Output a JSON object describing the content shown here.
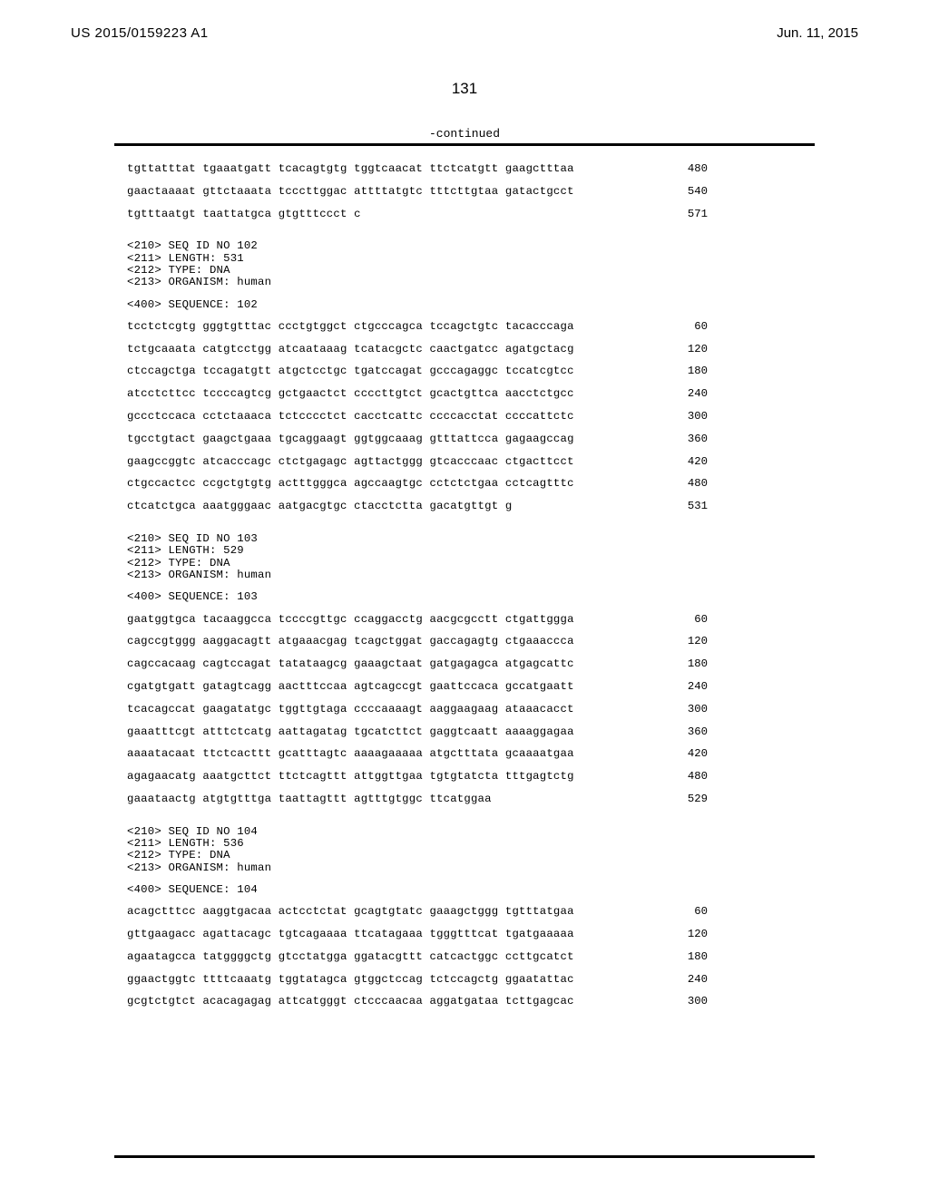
{
  "header": {
    "pub_number": "US 2015/0159223 A1",
    "pub_date": "Jun. 11, 2015"
  },
  "page_number": "131",
  "continued_label": "-continued",
  "blocks": [
    {
      "type": "seq_rows",
      "rows": [
        {
          "seq": "tgttatttat tgaaatgatt tcacagtgtg tggtcaacat ttctcatgtt gaagctttaa",
          "num": "480"
        },
        {
          "seq": "gaactaaaat gttctaaata tcccttggac attttatgtc tttcttgtaa gatactgcct",
          "num": "540"
        },
        {
          "seq": "tgtttaatgt taattatgca gtgtttccct c",
          "num": "571"
        }
      ]
    },
    {
      "type": "meta",
      "lines": [
        "<210> SEQ ID NO 102",
        "<211> LENGTH: 531",
        "<212> TYPE: DNA",
        "<213> ORGANISM: human"
      ]
    },
    {
      "type": "meta",
      "lines": [
        "<400> SEQUENCE: 102"
      ]
    },
    {
      "type": "seq_rows",
      "rows": [
        {
          "seq": "tcctctcgtg gggtgtttac ccctgtggct ctgcccagca tccagctgtc tacacccaga",
          "num": "60"
        },
        {
          "seq": "tctgcaaata catgtcctgg atcaataaag tcatacgctc caactgatcc agatgctacg",
          "num": "120"
        },
        {
          "seq": "ctccagctga tccagatgtt atgctcctgc tgatccagat gcccagaggc tccatcgtcc",
          "num": "180"
        },
        {
          "seq": "atcctcttcc tccccagtcg gctgaactct ccccttgtct gcactgttca aacctctgcc",
          "num": "240"
        },
        {
          "seq": "gccctccaca cctctaaaca tctcccctct cacctcattc ccccacctat ccccattctc",
          "num": "300"
        },
        {
          "seq": "tgcctgtact gaagctgaaa tgcaggaagt ggtggcaaag gtttattcca gagaagccag",
          "num": "360"
        },
        {
          "seq": "gaagccggtc atcacccagc ctctgagagc agttactggg gtcacccaac ctgacttcct",
          "num": "420"
        },
        {
          "seq": "ctgccactcc ccgctgtgtg actttgggca agccaagtgc cctctctgaa cctcagtttc",
          "num": "480"
        },
        {
          "seq": "ctcatctgca aaatgggaac aatgacgtgc ctacctctta gacatgttgt g",
          "num": "531"
        }
      ]
    },
    {
      "type": "meta",
      "lines": [
        "<210> SEQ ID NO 103",
        "<211> LENGTH: 529",
        "<212> TYPE: DNA",
        "<213> ORGANISM: human"
      ]
    },
    {
      "type": "meta",
      "lines": [
        "<400> SEQUENCE: 103"
      ]
    },
    {
      "type": "seq_rows",
      "rows": [
        {
          "seq": "gaatggtgca tacaaggcca tccccgttgc ccaggacctg aacgcgcctt ctgattggga",
          "num": "60"
        },
        {
          "seq": "cagccgtggg aaggacagtt atgaaacgag tcagctggat gaccagagtg ctgaaaccca",
          "num": "120"
        },
        {
          "seq": "cagccacaag cagtccagat tatataagcg gaaagctaat gatgagagca atgagcattc",
          "num": "180"
        },
        {
          "seq": "cgatgtgatt gatagtcagg aactttccaa agtcagccgt gaattccaca gccatgaatt",
          "num": "240"
        },
        {
          "seq": "tcacagccat gaagatatgc tggttgtaga ccccaaaagt aaggaagaag ataaacacct",
          "num": "300"
        },
        {
          "seq": "gaaatttcgt atttctcatg aattagatag tgcatcttct gaggtcaatt aaaaggagaa",
          "num": "360"
        },
        {
          "seq": "aaaatacaat ttctcacttt gcatttagtc aaaagaaaaa atgctttata gcaaaatgaa",
          "num": "420"
        },
        {
          "seq": "agagaacatg aaatgcttct ttctcagttt attggttgaa tgtgtatcta tttgagtctg",
          "num": "480"
        },
        {
          "seq": "gaaataactg atgtgtttga taattagttt agtttgtggc ttcatggaa",
          "num": "529"
        }
      ]
    },
    {
      "type": "meta",
      "lines": [
        "<210> SEQ ID NO 104",
        "<211> LENGTH: 536",
        "<212> TYPE: DNA",
        "<213> ORGANISM: human"
      ]
    },
    {
      "type": "meta",
      "lines": [
        "<400> SEQUENCE: 104"
      ]
    },
    {
      "type": "seq_rows",
      "rows": [
        {
          "seq": "acagctttcc aaggtgacaa actcctctat gcagtgtatc gaaagctggg tgtttatgaa",
          "num": "60"
        },
        {
          "seq": "gttgaagacc agattacagc tgtcagaaaa ttcatagaaa tgggtttcat tgatgaaaaa",
          "num": "120"
        },
        {
          "seq": "agaatagcca tatggggctg gtcctatgga ggatacgttt catcactggc ccttgcatct",
          "num": "180"
        },
        {
          "seq": "ggaactggtc ttttcaaatg tggtatagca gtggctccag tctccagctg ggaatattac",
          "num": "240"
        },
        {
          "seq": "gcgtctgtct acacagagag attcatgggt ctcccaacaa aggatgataa tcttgagcac",
          "num": "300"
        }
      ]
    }
  ]
}
